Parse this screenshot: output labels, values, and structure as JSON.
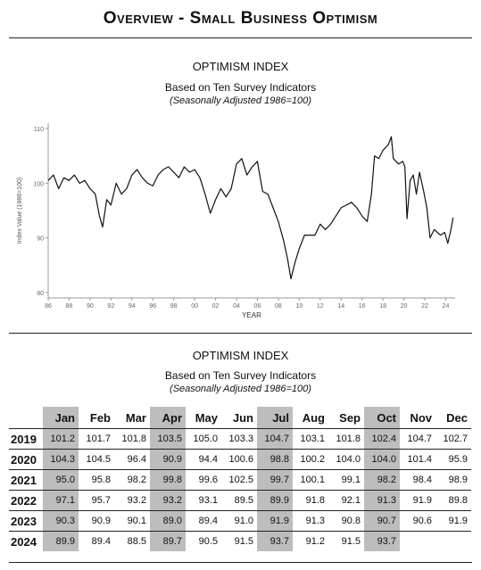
{
  "page": {
    "title": "Overview - Small Business Optimism"
  },
  "chart_section": {
    "title": "OPTIMISM INDEX",
    "subtitle": "Based on Ten Survey Indicators",
    "note": "(Seasonally Adjusted 1986=100)"
  },
  "table_section": {
    "title": "OPTIMISM INDEX",
    "subtitle": "Based on Ten Survey Indicators",
    "note": "(Seasonally Adjusted 1986=100)"
  },
  "chart_data": [
    {
      "type": "line",
      "ylabel": "Index Value (1986=100)",
      "xlabel": "YEAR",
      "ylim": [
        79,
        111
      ],
      "xlim": [
        1986,
        2024.9
      ],
      "yticks": [
        80,
        90,
        100,
        110
      ],
      "xtick_labels": [
        "86",
        "88",
        "90",
        "92",
        "94",
        "96",
        "98",
        "00",
        "02",
        "04",
        "06",
        "08",
        "10",
        "12",
        "14",
        "16",
        "18",
        "20",
        "22",
        "24"
      ],
      "grid": false,
      "line_color": "#111111",
      "x": [
        1986.0,
        1986.5,
        1987.0,
        1987.5,
        1988.0,
        1988.5,
        1989.0,
        1989.5,
        1990.0,
        1990.5,
        1990.9,
        1991.2,
        1991.6,
        1992.0,
        1992.5,
        1993.0,
        1993.5,
        1994.0,
        1994.5,
        1995.0,
        1995.5,
        1996.0,
        1996.5,
        1997.0,
        1997.5,
        1998.0,
        1998.5,
        1999.0,
        1999.5,
        2000.0,
        2000.5,
        2001.0,
        2001.5,
        2002.0,
        2002.5,
        2003.0,
        2003.5,
        2004.0,
        2004.5,
        2005.0,
        2005.5,
        2006.0,
        2006.5,
        2007.0,
        2007.5,
        2008.0,
        2008.5,
        2008.9,
        2009.2,
        2009.6,
        2010.0,
        2010.5,
        2011.0,
        2011.5,
        2012.0,
        2012.5,
        2013.0,
        2013.5,
        2014.0,
        2014.5,
        2015.0,
        2015.5,
        2016.0,
        2016.5,
        2016.9,
        2017.2,
        2017.6,
        2018.0,
        2018.5,
        2018.8,
        2019.0,
        2019.5,
        2019.9,
        2020.1,
        2020.3,
        2020.6,
        2020.9,
        2021.2,
        2021.5,
        2021.9,
        2022.2,
        2022.5,
        2022.9,
        2023.2,
        2023.5,
        2023.9,
        2024.2,
        2024.5,
        2024.7
      ],
      "values": [
        100.5,
        101.5,
        99.0,
        101.0,
        100.5,
        101.5,
        100.0,
        100.5,
        99.0,
        98.0,
        94.0,
        92.0,
        97.0,
        96.0,
        100.0,
        98.0,
        99.0,
        101.5,
        102.5,
        101.0,
        100.0,
        99.5,
        101.5,
        102.5,
        103.0,
        102.0,
        101.0,
        103.0,
        102.0,
        102.5,
        101.0,
        98.0,
        94.5,
        97.0,
        99.0,
        97.5,
        99.0,
        103.5,
        104.5,
        101.5,
        103.0,
        104.0,
        98.5,
        98.0,
        95.5,
        93.0,
        89.5,
        86.0,
        82.5,
        85.5,
        88.0,
        90.5,
        90.5,
        90.5,
        92.5,
        91.5,
        92.5,
        94.0,
        95.5,
        96.0,
        96.5,
        95.5,
        94.0,
        93.0,
        98.0,
        105.0,
        104.5,
        106.0,
        107.0,
        108.5,
        104.5,
        103.5,
        104.0,
        103.0,
        93.5,
        100.5,
        101.5,
        98.0,
        102.0,
        98.5,
        95.5,
        90.0,
        91.5,
        91.0,
        90.5,
        91.0,
        89.0,
        91.5,
        93.7
      ]
    },
    {
      "type": "table",
      "columns": [
        "Jan",
        "Feb",
        "Mar",
        "Apr",
        "May",
        "Jun",
        "Jul",
        "Aug",
        "Sep",
        "Oct",
        "Nov",
        "Dec"
      ],
      "highlight_columns": [
        "Jan",
        "Apr",
        "Jul",
        "Oct"
      ],
      "highlight_color": "#bdbdbd",
      "rows": [
        {
          "year": "2019",
          "values": [
            "101.2",
            "101.7",
            "101.8",
            "103.5",
            "105.0",
            "103.3",
            "104.7",
            "103.1",
            "101.8",
            "102.4",
            "104.7",
            "102.7"
          ]
        },
        {
          "year": "2020",
          "values": [
            "104.3",
            "104.5",
            "96.4",
            "90.9",
            "94.4",
            "100.6",
            "98.8",
            "100.2",
            "104.0",
            "104.0",
            "101.4",
            "95.9"
          ]
        },
        {
          "year": "2021",
          "values": [
            "95.0",
            "95.8",
            "98.2",
            "99.8",
            "99.6",
            "102.5",
            "99.7",
            "100.1",
            "99.1",
            "98.2",
            "98.4",
            "98.9"
          ]
        },
        {
          "year": "2022",
          "values": [
            "97.1",
            "95.7",
            "93.2",
            "93.2",
            "93.1",
            "89.5",
            "89.9",
            "91.8",
            "92.1",
            "91.3",
            "91.9",
            "89.8"
          ]
        },
        {
          "year": "2023",
          "values": [
            "90.3",
            "90.9",
            "90.1",
            "89.0",
            "89.4",
            "91.0",
            "91.9",
            "91.3",
            "90.8",
            "90.7",
            "90.6",
            "91.9"
          ]
        },
        {
          "year": "2024",
          "values": [
            "89.9",
            "89.4",
            "88.5",
            "89.7",
            "90.5",
            "91.5",
            "93.7",
            "91.2",
            "91.5",
            "93.7",
            "",
            ""
          ]
        }
      ]
    }
  ]
}
